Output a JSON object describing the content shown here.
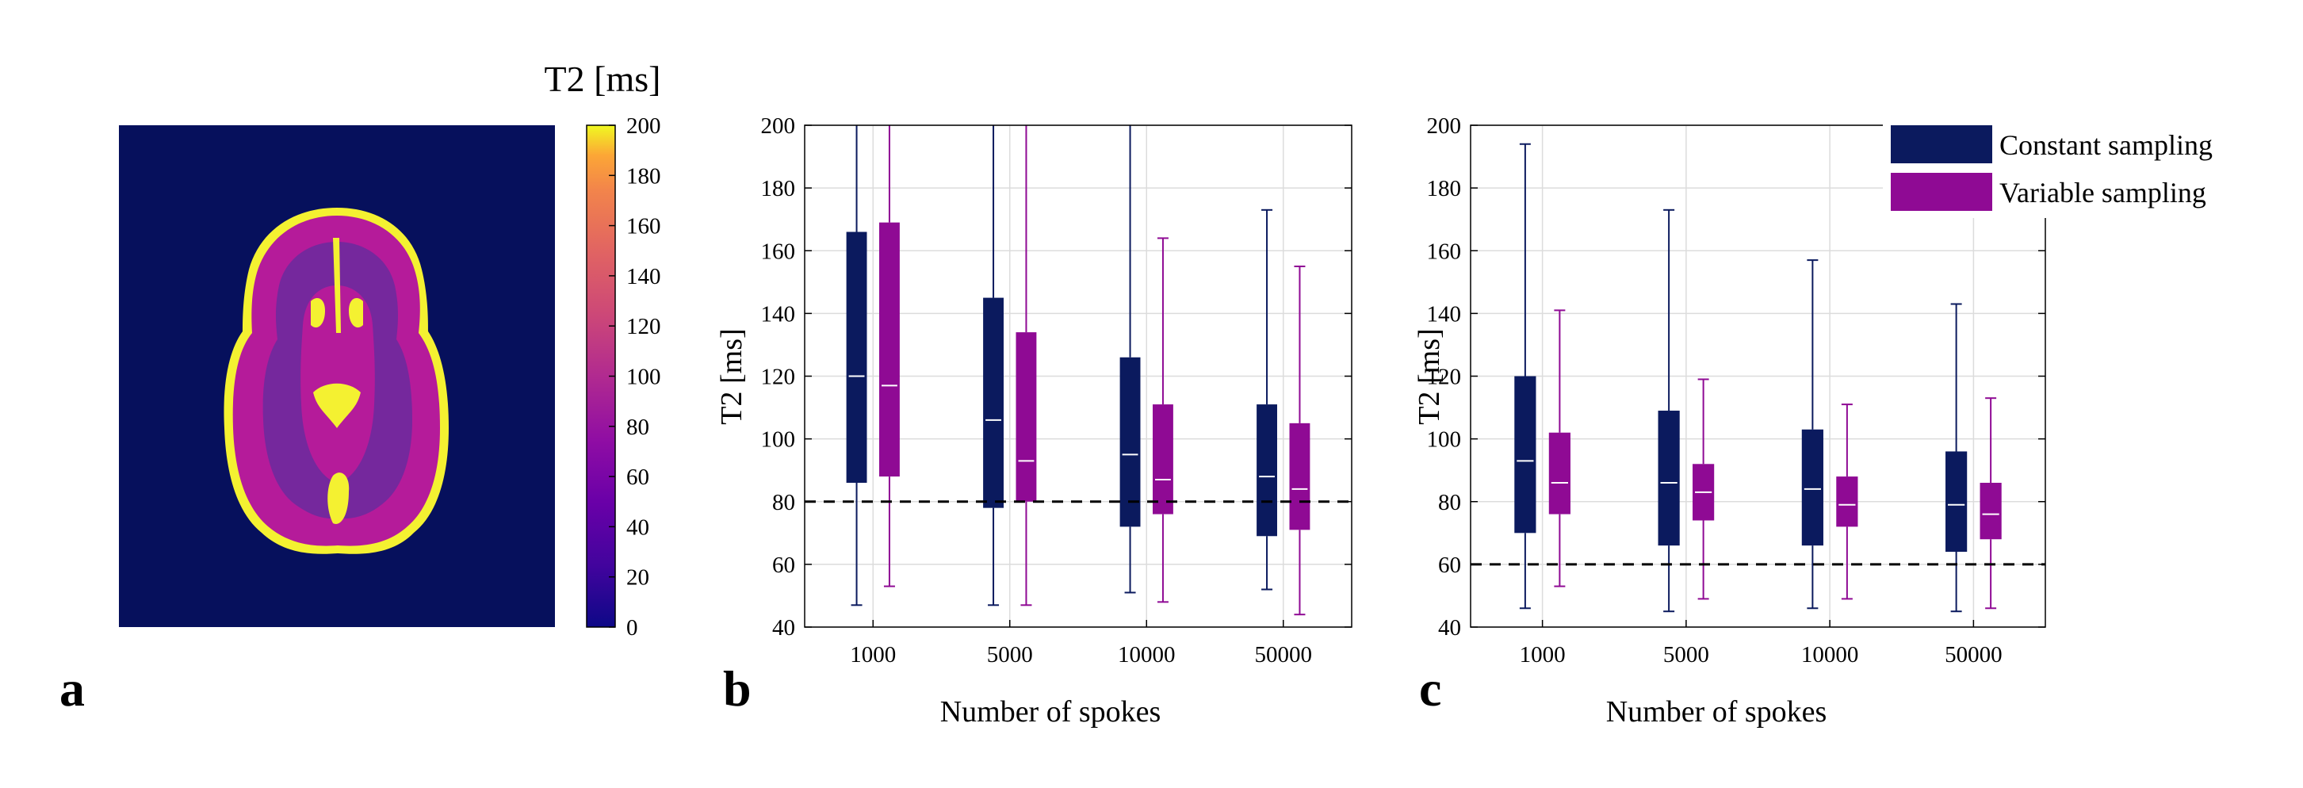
{
  "panel_a": {
    "letter": "a",
    "colorbar": {
      "title": "T2 [ms]",
      "ticks": [
        0,
        20,
        40,
        60,
        80,
        100,
        120,
        140,
        160,
        180,
        200
      ],
      "range": [
        0,
        200
      ],
      "colormap": "plasma"
    },
    "colors": {
      "background": "#06105c",
      "tissue": "#b51b9a",
      "csf": "#f4f131",
      "gray": "#6a2a9e"
    }
  },
  "legend": {
    "position": "top-right of panel c",
    "entries": [
      "Constant sampling",
      "Variable sampling"
    ]
  },
  "chart_data": [
    {
      "panel": "b",
      "type": "box",
      "xlabel": "Number of spokes",
      "ylabel": "T2 [ms]",
      "categories": [
        "1000",
        "5000",
        "10000",
        "50000"
      ],
      "ylim": [
        40,
        200
      ],
      "yticks": [
        40,
        60,
        80,
        100,
        120,
        140,
        160,
        180,
        200
      ],
      "grid": true,
      "reference_line": 80,
      "series": [
        {
          "name": "Constant sampling",
          "color": "#0b1a5e",
          "boxes": [
            {
              "whisker_low": 47,
              "q1": 86,
              "median": 120,
              "q3": 166,
              "whisker_high": 200
            },
            {
              "whisker_low": 47,
              "q1": 78,
              "median": 106,
              "q3": 145,
              "whisker_high": 200
            },
            {
              "whisker_low": 51,
              "q1": 72,
              "median": 95,
              "q3": 126,
              "whisker_high": 200
            },
            {
              "whisker_low": 52,
              "q1": 69,
              "median": 88,
              "q3": 111,
              "whisker_high": 173
            }
          ]
        },
        {
          "name": "Variable sampling",
          "color": "#8f0a94",
          "boxes": [
            {
              "whisker_low": 53,
              "q1": 88,
              "median": 117,
              "q3": 169,
              "whisker_high": 200
            },
            {
              "whisker_low": 47,
              "q1": 80,
              "median": 93,
              "q3": 134,
              "whisker_high": 200
            },
            {
              "whisker_low": 48,
              "q1": 76,
              "median": 87,
              "q3": 111,
              "whisker_high": 164
            },
            {
              "whisker_low": 44,
              "q1": 71,
              "median": 84,
              "q3": 105,
              "whisker_high": 155
            }
          ]
        }
      ]
    },
    {
      "panel": "c",
      "type": "box",
      "xlabel": "Number of spokes",
      "ylabel": "T2 [ms]",
      "categories": [
        "1000",
        "5000",
        "10000",
        "50000"
      ],
      "ylim": [
        40,
        200
      ],
      "yticks": [
        40,
        60,
        80,
        100,
        120,
        140,
        160,
        180,
        200
      ],
      "grid": true,
      "reference_line": 60,
      "series": [
        {
          "name": "Constant sampling",
          "color": "#0b1a5e",
          "boxes": [
            {
              "whisker_low": 46,
              "q1": 70,
              "median": 93,
              "q3": 120,
              "whisker_high": 194
            },
            {
              "whisker_low": 45,
              "q1": 66,
              "median": 86,
              "q3": 109,
              "whisker_high": 173
            },
            {
              "whisker_low": 46,
              "q1": 66,
              "median": 84,
              "q3": 103,
              "whisker_high": 157
            },
            {
              "whisker_low": 45,
              "q1": 64,
              "median": 79,
              "q3": 96,
              "whisker_high": 143
            }
          ]
        },
        {
          "name": "Variable sampling",
          "color": "#8f0a94",
          "boxes": [
            {
              "whisker_low": 53,
              "q1": 76,
              "median": 86,
              "q3": 102,
              "whisker_high": 141
            },
            {
              "whisker_low": 49,
              "q1": 74,
              "median": 83,
              "q3": 92,
              "whisker_high": 119
            },
            {
              "whisker_low": 49,
              "q1": 72,
              "median": 79,
              "q3": 88,
              "whisker_high": 111
            },
            {
              "whisker_low": 46,
              "q1": 68,
              "median": 76,
              "q3": 86,
              "whisker_high": 113
            }
          ]
        }
      ]
    }
  ],
  "panel_letters": {
    "b": "b",
    "c": "c"
  }
}
